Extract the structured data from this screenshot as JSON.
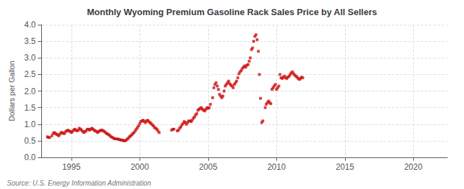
{
  "chart_data": {
    "type": "scatter",
    "title": "Monthly Wyoming Premium Gasoline Rack Sales Price by All Sellers",
    "ylabel": "Dollars per Gallon",
    "annotation": "Source: U.S. Energy Information Administration",
    "xlim": [
      1992.8,
      2022.5
    ],
    "xticks": [
      1995,
      2000,
      2005,
      2010,
      2015,
      2020
    ],
    "ylim": [
      0.0,
      4.0
    ],
    "yticks": [
      {
        "value": 0,
        "label": "0.0"
      },
      0.5,
      {
        "value": 1,
        "label": "1.0"
      },
      1.5,
      {
        "value": 2,
        "label": "2.0"
      },
      2.5,
      {
        "value": 3,
        "label": "3.0"
      },
      3.5,
      {
        "value": 4,
        "label": "4.0"
      }
    ],
    "grid": true,
    "color": "#cc1111",
    "marker": "square",
    "x": [
      1993.25,
      1993.33,
      1993.42,
      1993.58,
      1993.67,
      1993.75,
      1993.83,
      1993.92,
      1994.0,
      1994.08,
      1994.17,
      1994.25,
      1994.33,
      1994.42,
      1994.5,
      1994.58,
      1994.67,
      1994.75,
      1994.83,
      1994.92,
      1995.0,
      1995.08,
      1995.17,
      1995.25,
      1995.33,
      1995.42,
      1995.5,
      1995.58,
      1995.67,
      1995.75,
      1995.83,
      1995.92,
      1996.0,
      1996.08,
      1996.17,
      1996.25,
      1996.33,
      1996.42,
      1996.5,
      1996.58,
      1996.67,
      1996.75,
      1996.83,
      1996.92,
      1997.0,
      1997.08,
      1997.17,
      1997.25,
      1997.33,
      1997.42,
      1997.5,
      1997.58,
      1997.67,
      1997.75,
      1997.83,
      1997.92,
      1998.0,
      1998.08,
      1998.17,
      1998.25,
      1998.33,
      1998.42,
      1998.5,
      1998.58,
      1998.67,
      1998.75,
      1998.83,
      1998.92,
      1999.0,
      1999.08,
      1999.17,
      1999.25,
      1999.33,
      1999.42,
      1999.5,
      1999.58,
      1999.67,
      1999.75,
      1999.83,
      1999.92,
      2000.0,
      2000.08,
      2000.17,
      2000.25,
      2000.33,
      2000.42,
      2000.5,
      2000.58,
      2000.67,
      2000.75,
      2000.83,
      2000.92,
      2001.0,
      2001.08,
      2001.17,
      2001.25,
      2001.33,
      2001.42,
      2002.33,
      2002.42,
      2002.5,
      2002.75,
      2002.83,
      2002.92,
      2003.0,
      2003.08,
      2003.17,
      2003.25,
      2003.33,
      2003.42,
      2003.5,
      2003.58,
      2003.67,
      2003.75,
      2003.83,
      2003.92,
      2004.0,
      2004.08,
      2004.17,
      2004.25,
      2004.33,
      2004.42,
      2004.5,
      2004.58,
      2004.67,
      2004.75,
      2004.83,
      2004.92,
      2005.0,
      2005.08,
      2005.17,
      2005.33,
      2005.42,
      2005.5,
      2005.58,
      2005.67,
      2005.75,
      2005.83,
      2005.92,
      2006.0,
      2006.08,
      2006.17,
      2006.25,
      2006.33,
      2006.42,
      2006.5,
      2006.58,
      2006.67,
      2006.75,
      2006.83,
      2006.92,
      2007.0,
      2007.08,
      2007.17,
      2007.25,
      2007.33,
      2007.42,
      2007.5,
      2007.58,
      2007.67,
      2007.75,
      2007.83,
      2007.92,
      2008.0,
      2008.08,
      2008.17,
      2008.25,
      2008.33,
      2008.42,
      2008.5,
      2008.58,
      2008.67,
      2008.75,
      2008.83,
      2008.92,
      2009.0,
      2009.17,
      2009.25,
      2009.33,
      2009.42,
      2009.5,
      2009.58,
      2009.67,
      2009.75,
      2009.83,
      2009.92,
      2010.0,
      2010.08,
      2010.17,
      2010.25,
      2010.33,
      2010.42,
      2010.5,
      2010.58,
      2010.67,
      2010.75,
      2010.83,
      2010.92,
      2011.0,
      2011.08,
      2011.17,
      2011.25,
      2011.33,
      2011.42,
      2011.5,
      2011.58,
      2011.67,
      2011.75,
      2011.83,
      2011.92
    ],
    "values": [
      0.62,
      0.6,
      0.6,
      0.65,
      0.72,
      0.75,
      0.72,
      0.7,
      0.68,
      0.65,
      0.7,
      0.75,
      0.75,
      0.72,
      0.72,
      0.78,
      0.8,
      0.82,
      0.8,
      0.78,
      0.75,
      0.78,
      0.82,
      0.85,
      0.82,
      0.8,
      0.82,
      0.88,
      0.85,
      0.82,
      0.78,
      0.75,
      0.78,
      0.8,
      0.85,
      0.85,
      0.82,
      0.85,
      0.88,
      0.85,
      0.82,
      0.8,
      0.78,
      0.75,
      0.78,
      0.8,
      0.82,
      0.82,
      0.8,
      0.78,
      0.75,
      0.72,
      0.7,
      0.68,
      0.65,
      0.62,
      0.6,
      0.58,
      0.56,
      0.56,
      0.56,
      0.55,
      0.54,
      0.53,
      0.52,
      0.52,
      0.5,
      0.5,
      0.52,
      0.55,
      0.58,
      0.62,
      0.65,
      0.68,
      0.72,
      0.75,
      0.8,
      0.85,
      0.9,
      0.95,
      1.02,
      1.08,
      1.1,
      1.12,
      1.08,
      1.05,
      1.1,
      1.12,
      1.08,
      1.05,
      1.02,
      0.98,
      0.95,
      0.9,
      0.88,
      0.85,
      0.8,
      0.75,
      0.82,
      0.85,
      0.85,
      0.8,
      0.82,
      0.88,
      0.92,
      0.98,
      1.02,
      1.08,
      1.05,
      1.0,
      1.05,
      1.1,
      1.1,
      1.08,
      1.12,
      1.18,
      1.22,
      1.28,
      1.32,
      1.42,
      1.45,
      1.48,
      1.5,
      1.45,
      1.42,
      1.4,
      1.45,
      1.5,
      1.48,
      1.5,
      1.6,
      1.8,
      2.1,
      2.2,
      2.25,
      2.15,
      2.05,
      1.9,
      1.85,
      1.8,
      1.85,
      2.0,
      2.15,
      2.2,
      2.25,
      2.3,
      2.22,
      2.18,
      2.15,
      2.1,
      2.2,
      2.25,
      2.3,
      2.4,
      2.52,
      2.58,
      2.62,
      2.68,
      2.72,
      2.76,
      2.72,
      2.78,
      2.8,
      2.9,
      3.0,
      3.25,
      3.3,
      3.5,
      3.65,
      3.7,
      3.55,
      3.2,
      2.5,
      1.78,
      1.05,
      1.1,
      1.5,
      1.6,
      1.65,
      1.7,
      1.65,
      1.62,
      2.05,
      2.1,
      2.15,
      2.2,
      2.05,
      2.1,
      2.15,
      2.5,
      2.4,
      2.38,
      2.42,
      2.45,
      2.4,
      2.38,
      2.42,
      2.45,
      2.5,
      2.55,
      2.58,
      2.52,
      2.48,
      2.45,
      2.42,
      2.38,
      2.35,
      2.38,
      2.42,
      2.4
    ]
  }
}
